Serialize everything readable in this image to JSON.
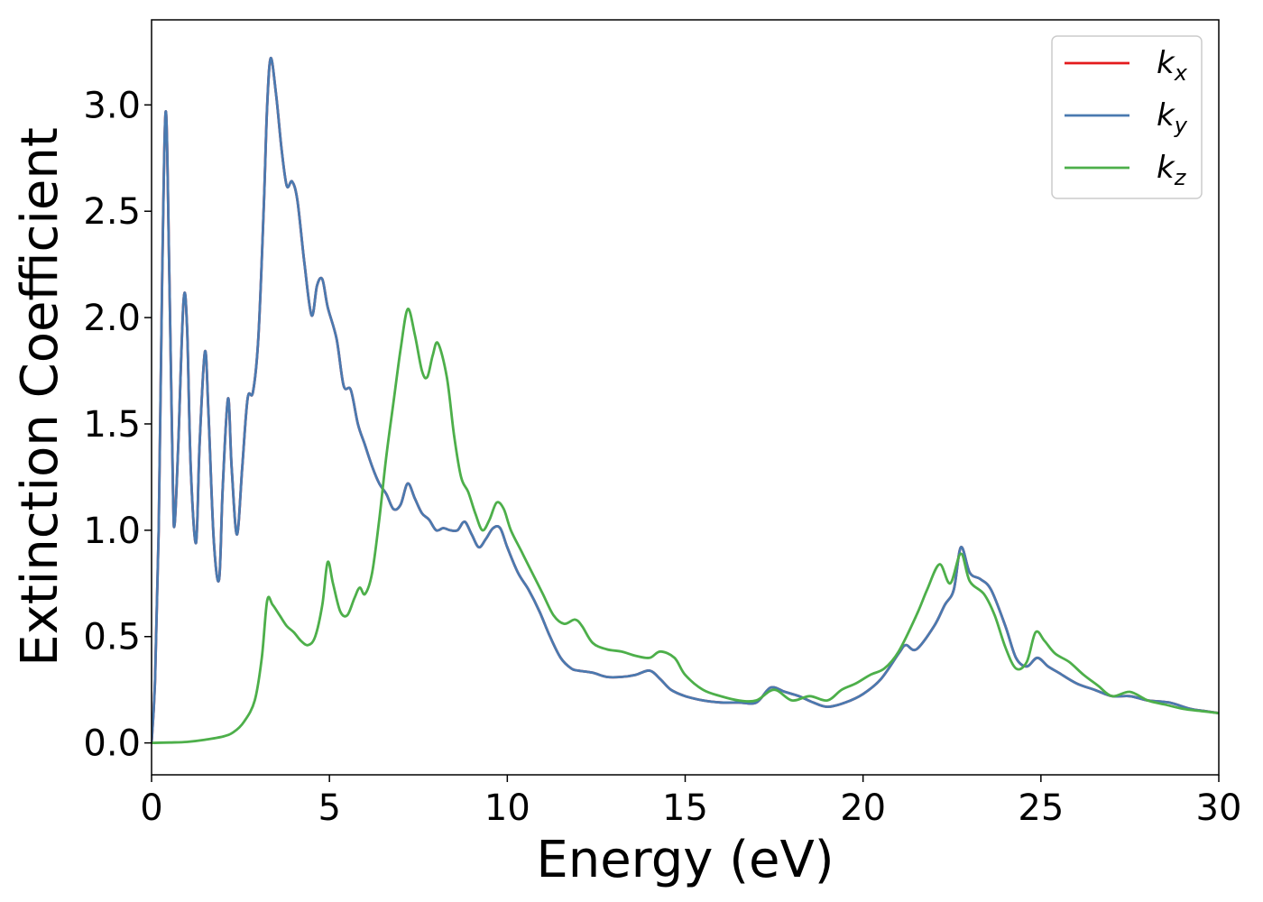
{
  "chart_data": {
    "type": "line",
    "title": "",
    "xlabel": "Energy (eV)",
    "ylabel": "Extinction Coefficient",
    "xlim": [
      0,
      30
    ],
    "ylim": [
      -0.15,
      3.4
    ],
    "x_ticks": [
      0,
      5,
      10,
      15,
      20,
      25,
      30
    ],
    "y_ticks": [
      0.0,
      0.5,
      1.0,
      1.5,
      2.0,
      2.5,
      3.0
    ],
    "x_tick_labels": [
      "0",
      "5",
      "10",
      "15",
      "20",
      "25",
      "30"
    ],
    "y_tick_labels": [
      "0.0",
      "0.5",
      "1.0",
      "1.5",
      "2.0",
      "2.5",
      "3.0"
    ],
    "grid": false,
    "legend_position": "top-right",
    "series": [
      {
        "name": "k",
        "sub": "x",
        "color": "#e41a1c",
        "points": [
          [
            0,
            0
          ],
          [
            0.1,
            0.3
          ],
          [
            0.2,
            1.0
          ],
          [
            0.3,
            2.2
          ],
          [
            0.4,
            2.97
          ],
          [
            0.5,
            2.2
          ],
          [
            0.6,
            1.2
          ],
          [
            0.65,
            1.03
          ],
          [
            0.75,
            1.4
          ],
          [
            0.9,
            2.08
          ],
          [
            1.0,
            1.95
          ],
          [
            1.1,
            1.3
          ],
          [
            1.25,
            0.94
          ],
          [
            1.35,
            1.4
          ],
          [
            1.5,
            1.84
          ],
          [
            1.6,
            1.55
          ],
          [
            1.75,
            0.95
          ],
          [
            1.9,
            0.77
          ],
          [
            2.0,
            1.2
          ],
          [
            2.15,
            1.62
          ],
          [
            2.25,
            1.3
          ],
          [
            2.4,
            0.98
          ],
          [
            2.55,
            1.3
          ],
          [
            2.7,
            1.62
          ],
          [
            2.85,
            1.65
          ],
          [
            3.0,
            1.9
          ],
          [
            3.15,
            2.5
          ],
          [
            3.25,
            3.0
          ],
          [
            3.35,
            3.22
          ],
          [
            3.5,
            3.05
          ],
          [
            3.65,
            2.8
          ],
          [
            3.8,
            2.62
          ],
          [
            3.95,
            2.64
          ],
          [
            4.1,
            2.55
          ],
          [
            4.3,
            2.25
          ],
          [
            4.5,
            2.01
          ],
          [
            4.65,
            2.15
          ],
          [
            4.8,
            2.18
          ],
          [
            4.95,
            2.05
          ],
          [
            5.2,
            1.9
          ],
          [
            5.4,
            1.68
          ],
          [
            5.6,
            1.66
          ],
          [
            5.8,
            1.5
          ],
          [
            6.0,
            1.4
          ],
          [
            6.2,
            1.3
          ],
          [
            6.4,
            1.22
          ],
          [
            6.6,
            1.17
          ],
          [
            6.8,
            1.1
          ],
          [
            7.0,
            1.12
          ],
          [
            7.2,
            1.22
          ],
          [
            7.4,
            1.15
          ],
          [
            7.6,
            1.08
          ],
          [
            7.8,
            1.05
          ],
          [
            8.0,
            1.0
          ],
          [
            8.2,
            1.01
          ],
          [
            8.4,
            1.0
          ],
          [
            8.6,
            1.0
          ],
          [
            8.8,
            1.04
          ],
          [
            9.0,
            0.98
          ],
          [
            9.2,
            0.92
          ],
          [
            9.4,
            0.96
          ],
          [
            9.6,
            1.01
          ],
          [
            9.8,
            1.01
          ],
          [
            10.0,
            0.92
          ],
          [
            10.3,
            0.8
          ],
          [
            10.6,
            0.72
          ],
          [
            10.9,
            0.62
          ],
          [
            11.2,
            0.5
          ],
          [
            11.5,
            0.4
          ],
          [
            11.8,
            0.35
          ],
          [
            12.0,
            0.34
          ],
          [
            12.4,
            0.33
          ],
          [
            12.8,
            0.31
          ],
          [
            13.2,
            0.31
          ],
          [
            13.6,
            0.32
          ],
          [
            14.0,
            0.34
          ],
          [
            14.3,
            0.3
          ],
          [
            14.6,
            0.25
          ],
          [
            15.0,
            0.22
          ],
          [
            15.5,
            0.2
          ],
          [
            16.0,
            0.19
          ],
          [
            16.5,
            0.19
          ],
          [
            17.0,
            0.19
          ],
          [
            17.4,
            0.26
          ],
          [
            17.8,
            0.24
          ],
          [
            18.2,
            0.22
          ],
          [
            18.6,
            0.19
          ],
          [
            19.0,
            0.17
          ],
          [
            19.5,
            0.19
          ],
          [
            20.0,
            0.23
          ],
          [
            20.5,
            0.3
          ],
          [
            21.0,
            0.42
          ],
          [
            21.2,
            0.46
          ],
          [
            21.5,
            0.44
          ],
          [
            22.0,
            0.55
          ],
          [
            22.3,
            0.65
          ],
          [
            22.55,
            0.72
          ],
          [
            22.75,
            0.92
          ],
          [
            23.0,
            0.8
          ],
          [
            23.3,
            0.77
          ],
          [
            23.6,
            0.72
          ],
          [
            24.0,
            0.55
          ],
          [
            24.3,
            0.4
          ],
          [
            24.6,
            0.36
          ],
          [
            24.9,
            0.4
          ],
          [
            25.2,
            0.36
          ],
          [
            25.5,
            0.33
          ],
          [
            26.0,
            0.28
          ],
          [
            26.5,
            0.25
          ],
          [
            27.0,
            0.22
          ],
          [
            27.5,
            0.22
          ],
          [
            28.0,
            0.2
          ],
          [
            28.6,
            0.19
          ],
          [
            29.2,
            0.16
          ],
          [
            29.6,
            0.15
          ],
          [
            30.0,
            0.14
          ]
        ]
      },
      {
        "name": "k",
        "sub": "y",
        "color": "#4a7ab0",
        "same_as_series": 0
      },
      {
        "name": "k",
        "sub": "z",
        "color": "#4daf4a",
        "points": [
          [
            0,
            0
          ],
          [
            0.5,
            0.002
          ],
          [
            1.0,
            0.005
          ],
          [
            1.5,
            0.015
          ],
          [
            2.0,
            0.03
          ],
          [
            2.3,
            0.05
          ],
          [
            2.6,
            0.1
          ],
          [
            2.9,
            0.2
          ],
          [
            3.1,
            0.4
          ],
          [
            3.25,
            0.67
          ],
          [
            3.4,
            0.65
          ],
          [
            3.6,
            0.6
          ],
          [
            3.8,
            0.55
          ],
          [
            4.0,
            0.52
          ],
          [
            4.2,
            0.48
          ],
          [
            4.4,
            0.46
          ],
          [
            4.6,
            0.5
          ],
          [
            4.8,
            0.65
          ],
          [
            4.95,
            0.85
          ],
          [
            5.1,
            0.75
          ],
          [
            5.3,
            0.62
          ],
          [
            5.5,
            0.6
          ],
          [
            5.7,
            0.68
          ],
          [
            5.85,
            0.73
          ],
          [
            6.0,
            0.7
          ],
          [
            6.2,
            0.8
          ],
          [
            6.4,
            1.05
          ],
          [
            6.6,
            1.35
          ],
          [
            6.8,
            1.6
          ],
          [
            7.0,
            1.85
          ],
          [
            7.2,
            2.04
          ],
          [
            7.4,
            1.92
          ],
          [
            7.6,
            1.75
          ],
          [
            7.75,
            1.72
          ],
          [
            7.9,
            1.82
          ],
          [
            8.05,
            1.88
          ],
          [
            8.3,
            1.72
          ],
          [
            8.5,
            1.45
          ],
          [
            8.7,
            1.25
          ],
          [
            8.9,
            1.18
          ],
          [
            9.1,
            1.08
          ],
          [
            9.3,
            1.0
          ],
          [
            9.5,
            1.05
          ],
          [
            9.7,
            1.13
          ],
          [
            9.9,
            1.1
          ],
          [
            10.1,
            1.0
          ],
          [
            10.4,
            0.9
          ],
          [
            10.7,
            0.8
          ],
          [
            11.0,
            0.7
          ],
          [
            11.3,
            0.6
          ],
          [
            11.6,
            0.56
          ],
          [
            11.9,
            0.58
          ],
          [
            12.1,
            0.55
          ],
          [
            12.4,
            0.47
          ],
          [
            12.8,
            0.44
          ],
          [
            13.2,
            0.43
          ],
          [
            13.6,
            0.41
          ],
          [
            14.0,
            0.4
          ],
          [
            14.3,
            0.43
          ],
          [
            14.7,
            0.4
          ],
          [
            15.0,
            0.32
          ],
          [
            15.5,
            0.25
          ],
          [
            16.0,
            0.22
          ],
          [
            16.5,
            0.2
          ],
          [
            17.0,
            0.2
          ],
          [
            17.5,
            0.25
          ],
          [
            18.0,
            0.2
          ],
          [
            18.5,
            0.22
          ],
          [
            19.0,
            0.2
          ],
          [
            19.4,
            0.25
          ],
          [
            19.8,
            0.28
          ],
          [
            20.2,
            0.32
          ],
          [
            20.6,
            0.35
          ],
          [
            21.0,
            0.43
          ],
          [
            21.5,
            0.6
          ],
          [
            21.8,
            0.72
          ],
          [
            22.15,
            0.84
          ],
          [
            22.45,
            0.75
          ],
          [
            22.75,
            0.89
          ],
          [
            23.0,
            0.76
          ],
          [
            23.4,
            0.7
          ],
          [
            23.7,
            0.6
          ],
          [
            24.0,
            0.45
          ],
          [
            24.3,
            0.35
          ],
          [
            24.6,
            0.38
          ],
          [
            24.85,
            0.52
          ],
          [
            25.1,
            0.48
          ],
          [
            25.4,
            0.42
          ],
          [
            25.8,
            0.38
          ],
          [
            26.2,
            0.32
          ],
          [
            26.6,
            0.27
          ],
          [
            27.0,
            0.22
          ],
          [
            27.5,
            0.24
          ],
          [
            28.0,
            0.2
          ],
          [
            28.5,
            0.18
          ],
          [
            29.0,
            0.16
          ],
          [
            29.5,
            0.15
          ],
          [
            30.0,
            0.14
          ]
        ]
      }
    ]
  }
}
